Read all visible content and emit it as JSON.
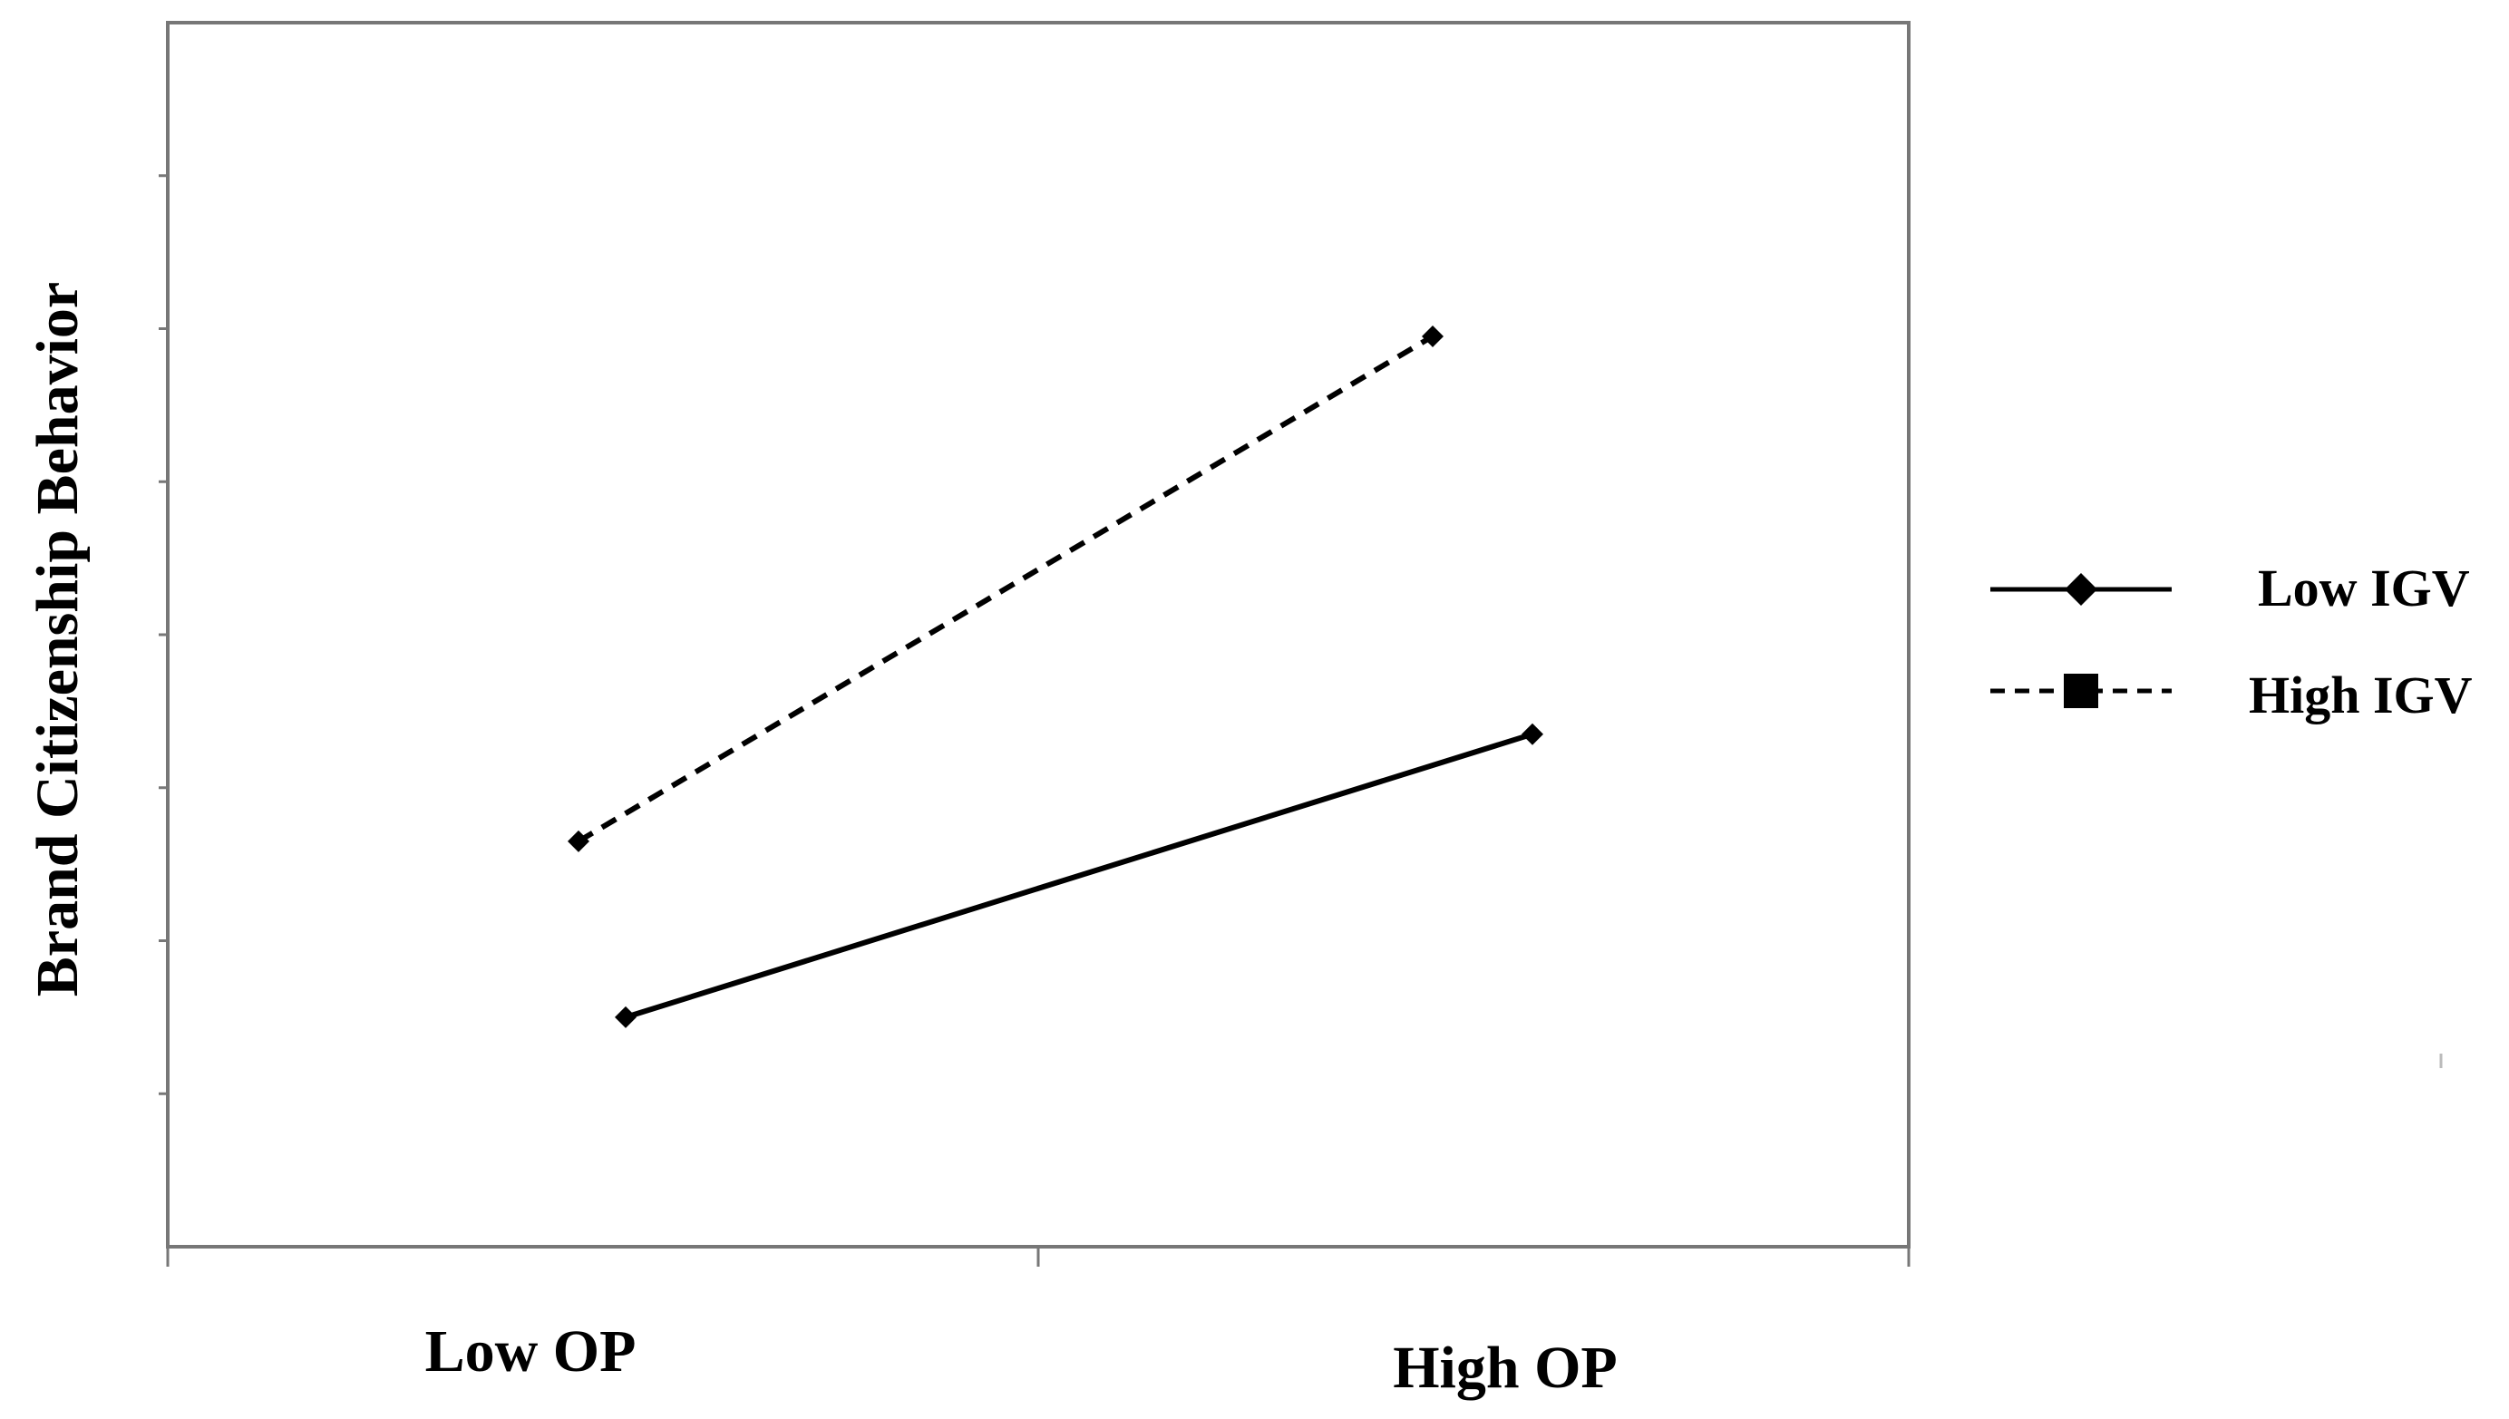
{
  "chart_data": {
    "type": "line",
    "title": "",
    "xlabel": "",
    "ylabel": "Brand Citizenship Behavior",
    "categories": [
      "Low OP",
      "High OP"
    ],
    "ylim": [
      0,
      8
    ],
    "grid": false,
    "legend_position": "right",
    "series": [
      {
        "name": "Low IGV",
        "line_style": "solid",
        "marker": "diamond",
        "points": [
          {
            "x": "Low OP",
            "y": 1.5
          },
          {
            "x": "High OP",
            "y": 3.35
          }
        ]
      },
      {
        "name": "High IGV",
        "line_style": "dashed",
        "marker": "square",
        "points": [
          {
            "x": "Low OP",
            "y": 2.65
          },
          {
            "x": "High OP",
            "y": 5.95
          }
        ]
      }
    ],
    "colors": {
      "axis": "#777777",
      "series": "#000000"
    }
  }
}
